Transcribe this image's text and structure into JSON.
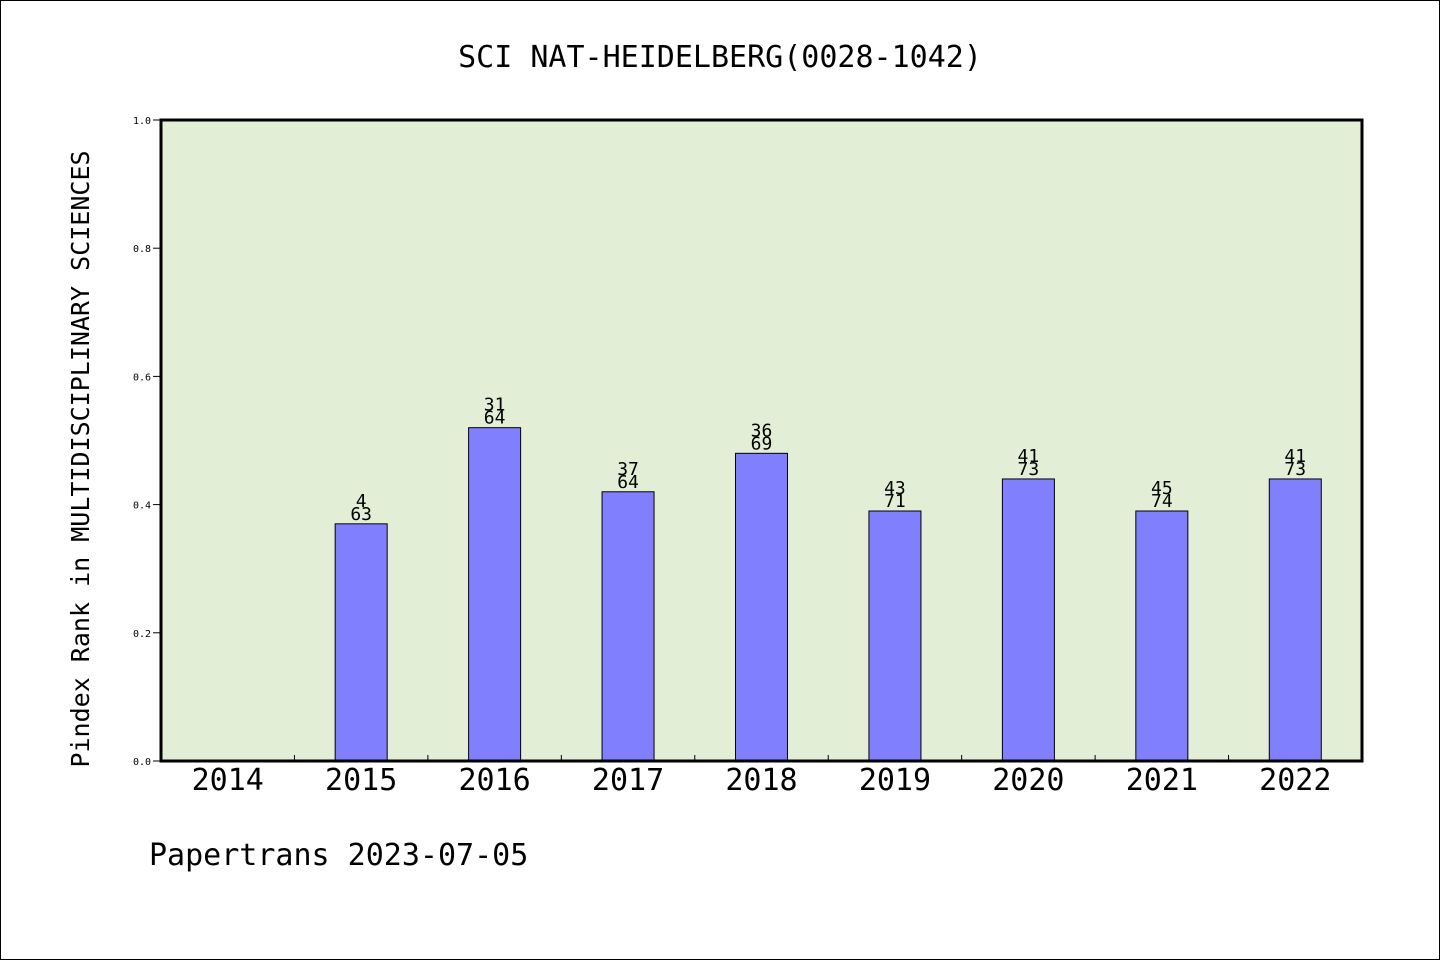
{
  "chart_data": {
    "type": "bar",
    "title": "SCI NAT-HEIDELBERG(0028-1042)",
    "ylabel": "Pindex Rank in MULTIDISCIPLINARY SCIENCES",
    "xlabel": "",
    "categories": [
      "2014",
      "2015",
      "2016",
      "2017",
      "2018",
      "2019",
      "2020",
      "2021",
      "2022"
    ],
    "values": [
      null,
      0.37,
      0.52,
      0.42,
      0.48,
      0.39,
      0.44,
      0.39,
      0.44
    ],
    "rank": [
      null,
      "4",
      "31",
      "37",
      "36",
      "43",
      "41",
      "45",
      "41"
    ],
    "total": [
      null,
      "63",
      "64",
      "64",
      "69",
      "71",
      "73",
      "74",
      "73"
    ],
    "ylim": [
      0,
      1.0
    ],
    "yticks": [
      "0.0",
      "0.2",
      "0.4",
      "0.6",
      "0.8",
      "1.0"
    ],
    "grid": false,
    "colors": {
      "plot_background": "#e2efd6",
      "bar_fill": "#8080ff",
      "bar_stroke": "#000000"
    }
  },
  "footer": "Papertrans 2023-07-05"
}
